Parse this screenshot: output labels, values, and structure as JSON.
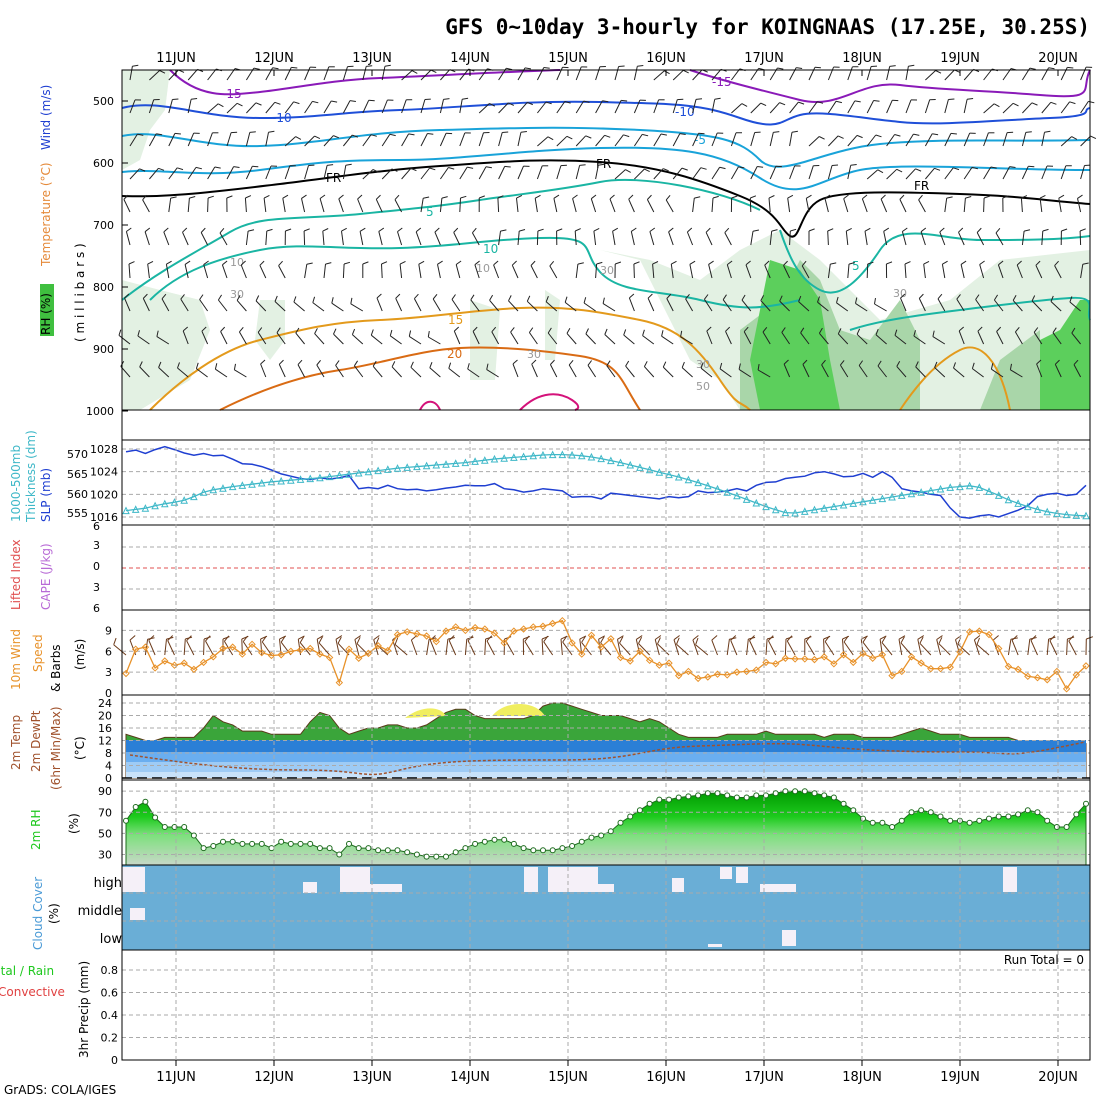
{
  "title": "GFS 0~10day 3-hourly for KOINGNAAS (17.25E, 30.25S)",
  "footer": "GrADS: COLA/IGES",
  "dates": [
    "11JUN",
    "12JUN",
    "13JUN",
    "14JUN",
    "15JUN",
    "16JUN",
    "17JUN",
    "18JUN",
    "19JUN",
    "20JUN"
  ],
  "colors": {
    "background": "#ffffff",
    "temp_contour_cold": "#8a1ab8",
    "temp_contour_mid": "#1f4fd8",
    "temp_contour_cyan": "#19a3d9",
    "temp_contour_teal": "#1ab5a3",
    "temp_contour_warm": "#e39a1c",
    "temp_contour_hot": "#d96b14",
    "temp_contour_hotter": "#d4127a",
    "freezing_level": "#000000",
    "rh_light": "#e6f2e6",
    "rh_mid": "#a8d8a8",
    "rh_dark": "#3fbf3f",
    "slp": "#1f3fd1",
    "thickness": "#3fb8c8",
    "lifted_index_zero": "#e05050",
    "wind_speed": "#e8922a",
    "wind_barb": "#6b3a1a",
    "temp_fill_green": "#3aa53a",
    "temp_fill_yellow": "#f0ee60",
    "dewpoint_band": "#2b7fd6",
    "rh2m_green": "#1ec81e",
    "cloud_blue": "#6aaed6",
    "cloud_clear": "#f5f0f8",
    "grid": "#aaaaaa"
  },
  "panels": {
    "upper": {
      "ylabel_rh": "RH (%)",
      "ylabel_temp": "Temperature (°C)",
      "ylabel_wind": "Wind (m/s)",
      "ylabel_mb": "( m i l l i b a r s )",
      "ytick_labels": [
        "500",
        "600",
        "700",
        "800",
        "900",
        "1000"
      ],
      "contour_labels": [
        "-15",
        "-15",
        "-10",
        "-10",
        "-5",
        "-5",
        "5",
        "10",
        "5",
        "15",
        "20",
        "FR",
        "FR",
        "FR",
        "10",
        "30",
        "30",
        "30",
        "10",
        "30",
        "30",
        "50"
      ]
    },
    "slp": {
      "ylabel_a": "1000-500mb",
      "ylabel_b": "Thickness (dm)",
      "ylabel_c": "SLP (mb)",
      "left_ticks": [
        "570",
        "565",
        "560",
        "555"
      ],
      "right_ticks": [
        "1028",
        "1024",
        "1020",
        "1016"
      ]
    },
    "cape": {
      "ylabel_a": "Lifted Index",
      "ylabel_b": "CAPE (J/kg)",
      "ytick_labels": [
        "6",
        "3",
        "0",
        "3",
        "6"
      ]
    },
    "wind10": {
      "ylabel_a": "10m Wind",
      "ylabel_b": "Speed",
      "ylabel_c": "& Barbs",
      "ylabel_unit": "(m/s)",
      "ytick_labels": [
        "9",
        "6",
        "3",
        "0"
      ]
    },
    "temp2m": {
      "ylabel_a": "2m Temp",
      "ylabel_b": "2m DewPt",
      "ylabel_c": "(6hr Min/Max)",
      "ylabel_unit": "(°C)",
      "ytick_labels": [
        "24",
        "20",
        "16",
        "12",
        "8",
        "4",
        "0"
      ]
    },
    "rh2m": {
      "ylabel_a": "2m RH",
      "ylabel_unit": "(%)",
      "ytick_labels": [
        "90",
        "70",
        "50",
        "30"
      ]
    },
    "cloud": {
      "ylabel_a": "Cloud Cover",
      "ylabel_unit": "(%)",
      "level_labels": [
        "high",
        "middle",
        "low"
      ]
    },
    "precip": {
      "ylabel_a": "Total / Rain",
      "ylabel_b": "Convective",
      "ylabel_c": "3hr Precip (mm)",
      "ytick_labels": [
        "0.8",
        "0.6",
        "0.4",
        "0.2",
        "0"
      ],
      "run_total": "Run Total = 0"
    }
  },
  "chart_data": {
    "type": "line",
    "x_labels": [
      "11JUN",
      "12JUN",
      "13JUN",
      "14JUN",
      "15JUN",
      "16JUN",
      "17JUN",
      "18JUN",
      "19JUN",
      "20JUN"
    ],
    "step_hours": 3,
    "series": [
      {
        "name": "SLP (mb)",
        "y": [
          1027.5,
          1027.8,
          1027.2,
          1027.9,
          1028.4,
          1027.9,
          1027.3,
          1026.9,
          1027.2,
          1026.8,
          1026.9,
          1026.2,
          1025.4,
          1025.3,
          1024.9,
          1024.3,
          1023.6,
          1023.2,
          1022.8,
          1022.6,
          1022.9,
          1022.7,
          1022.9,
          1023.3,
          1021.0,
          1021.2,
          1021.0,
          1021.6,
          1021.0,
          1020.8,
          1020.9,
          1020.6,
          1020.8,
          1021.1,
          1021.3,
          1021.6,
          1021.5,
          1021.5,
          1021.9,
          1021.0,
          1020.8,
          1020.4,
          1020.6,
          1021.0,
          1020.8,
          1020.6,
          1019.5,
          1019.6,
          1019.6,
          1019.2,
          1020.2,
          1020.0,
          1019.8,
          1019.6,
          1019.4,
          1019.2,
          1019.6,
          1019.4,
          1019.6,
          1020.6,
          1020.3,
          1020.4,
          1020.6,
          1021.0,
          1020.6,
          1021.6,
          1022.1,
          1022.2,
          1022.8,
          1023.0,
          1023.2,
          1023.8,
          1024.0,
          1023.6,
          1023.1,
          1023.2,
          1023.7,
          1023.0,
          1024.0,
          1023.0,
          1021.0,
          1020.6,
          1020.4,
          1020.0,
          1019.8,
          1017.6,
          1016.0,
          1015.8,
          1016.2,
          1016.4,
          1016.0,
          1016.6,
          1017.2,
          1018.0,
          1019.6,
          1020.0,
          1020.2,
          1019.8,
          1020.0,
          1021.6
        ]
      },
      {
        "name": "1000-500mb Thickness (dm)",
        "y": [
          555.6,
          555.9,
          556.2,
          556.8,
          557.3,
          557.7,
          558.2,
          559.1,
          560.2,
          560.8,
          561.2,
          561.6,
          561.9,
          562.2,
          562.5,
          562.8,
          563.0,
          563.2,
          563.4,
          563.6,
          563.8,
          564.1,
          564.4,
          564.7,
          565.0,
          565.3,
          565.6,
          565.9,
          566.2,
          566.4,
          566.6,
          566.8,
          567.0,
          567.2,
          567.4,
          567.6,
          567.9,
          568.2,
          568.5,
          568.7,
          568.9,
          569.1,
          569.3,
          569.5,
          569.6,
          569.6,
          569.5,
          569.3,
          569.0,
          568.6,
          568.1,
          567.6,
          567.0,
          566.4,
          565.8,
          565.2,
          564.6,
          564.0,
          563.3,
          562.6,
          561.8,
          561.0,
          560.2,
          559.3,
          558.4,
          557.5,
          556.6,
          555.8,
          555.1,
          555.0,
          555.4,
          555.8,
          556.2,
          556.6,
          557.0,
          557.4,
          557.8,
          558.2,
          558.6,
          559.0,
          559.4,
          559.8,
          560.2,
          560.6,
          561.0,
          561.4,
          561.6,
          561.8,
          561.4,
          560.4,
          559.4,
          558.3,
          557.4,
          556.6,
          555.9,
          555.3,
          554.9,
          554.6,
          554.4,
          554.3
        ]
      },
      {
        "name": "10m Wind Speed (m/s)",
        "y": [
          2.8,
          6.3,
          6.6,
          3.6,
          4.6,
          4.0,
          4.3,
          3.4,
          4.4,
          5.2,
          6.4,
          6.6,
          5.6,
          7.0,
          5.8,
          5.4,
          5.5,
          6.0,
          6.2,
          6.4,
          5.6,
          5.1,
          1.5,
          6.3,
          5.0,
          5.7,
          6.8,
          6.1,
          8.4,
          8.8,
          8.5,
          8.2,
          7.4,
          8.9,
          9.5,
          9.0,
          9.4,
          9.2,
          8.6,
          7.2,
          8.9,
          9.2,
          9.5,
          9.6,
          10.0,
          10.4,
          7.2,
          5.6,
          8.3,
          6.6,
          7.8,
          5.1,
          4.6,
          6.0,
          4.7,
          4.0,
          4.3,
          2.5,
          3.1,
          2.1,
          2.3,
          2.7,
          2.6,
          3.0,
          3.1,
          3.3,
          4.4,
          4.2,
          5.0,
          4.9,
          4.9,
          4.8,
          5.2,
          4.2,
          5.5,
          4.4,
          5.7,
          5.0,
          5.5,
          2.5,
          3.1,
          5.2,
          4.3,
          3.5,
          3.5,
          3.7,
          5.9,
          8.8,
          8.9,
          8.4,
          6.4,
          3.8,
          3.4,
          2.4,
          2.2,
          1.9,
          3.1,
          0.6,
          2.6,
          3.9
        ]
      },
      {
        "name": "2m RH (%)",
        "y": [
          62,
          75,
          80,
          65,
          56,
          56,
          56,
          48,
          36,
          38,
          42,
          42,
          40,
          40,
          40,
          36,
          42,
          40,
          40,
          40,
          36,
          36,
          30,
          40,
          36,
          36,
          34,
          34,
          34,
          32,
          30,
          28,
          28,
          28,
          32,
          36,
          40,
          42,
          44,
          44,
          40,
          36,
          34,
          34,
          34,
          36,
          38,
          42,
          46,
          48,
          52,
          60,
          66,
          72,
          78,
          82,
          82,
          84,
          85,
          86,
          88,
          88,
          86,
          84,
          84,
          86,
          86,
          88,
          90,
          90,
          90,
          88,
          86,
          84,
          78,
          72,
          64,
          60,
          60,
          56,
          62,
          70,
          72,
          70,
          66,
          62,
          62,
          60,
          62,
          64,
          66,
          66,
          68,
          72,
          70,
          62,
          56,
          56,
          68,
          78
        ]
      }
    ]
  }
}
